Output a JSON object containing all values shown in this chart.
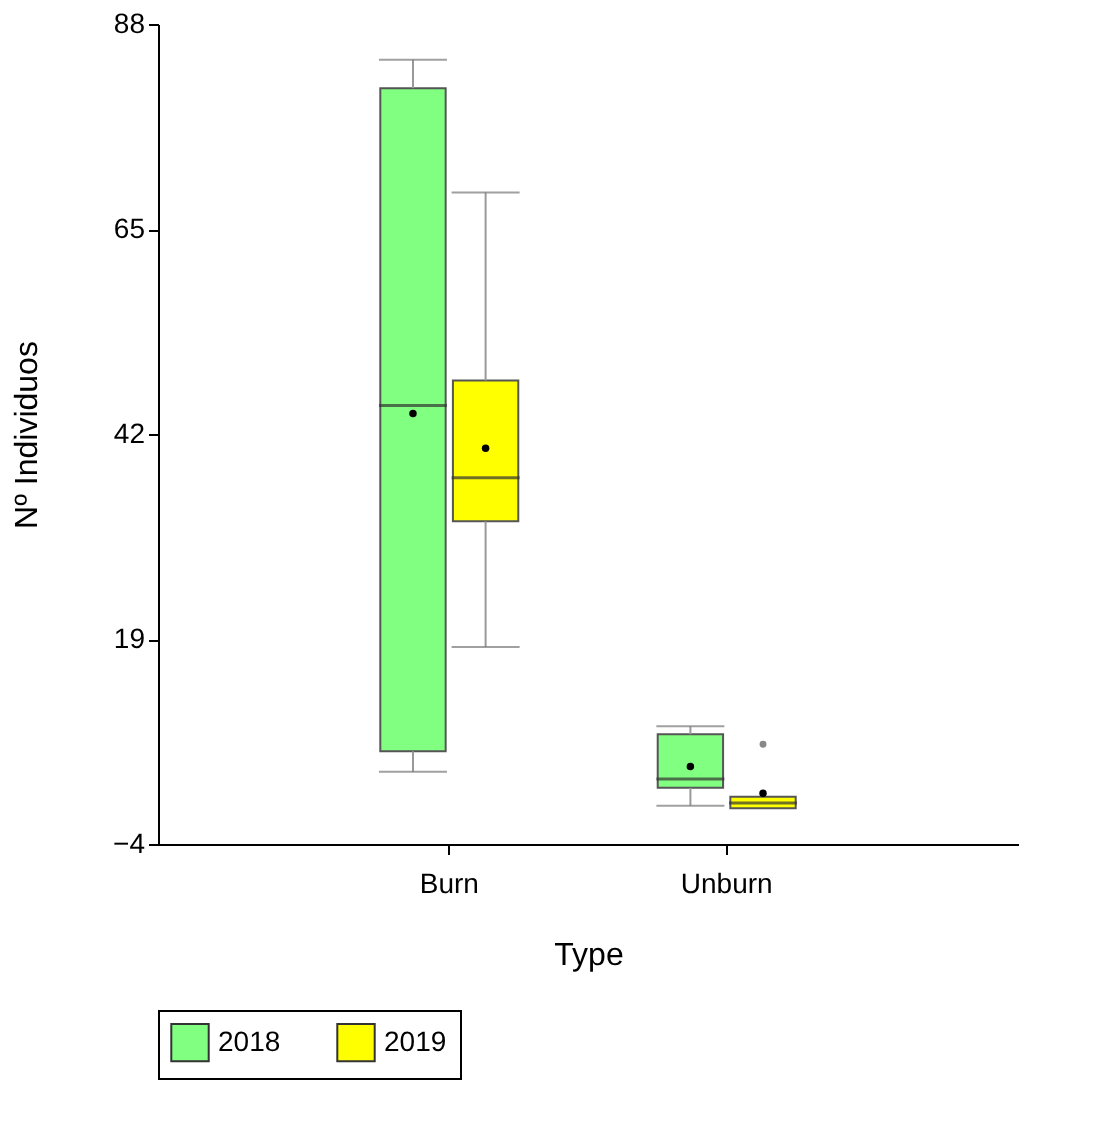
{
  "chart_data": {
    "type": "box",
    "xlabel": "Type",
    "ylabel": "Nº Individuos",
    "categories": [
      "Burn",
      "Unburn"
    ],
    "series": [
      {
        "name": "2018",
        "color": "#80ff80",
        "boxes": [
          {
            "low": 4.1,
            "q1": 6.4,
            "median": 45.2,
            "q3": 80.8,
            "high": 84.0,
            "mean": 44.3
          },
          {
            "low": 0.3,
            "q1": 2.3,
            "median": 3.3,
            "q3": 8.3,
            "high": 9.2,
            "mean": 4.7
          }
        ]
      },
      {
        "name": "2019",
        "color": "#ffff00",
        "boxes": [
          {
            "low": 18.1,
            "q1": 32.2,
            "median": 37.1,
            "q3": 48.0,
            "high": 69.1,
            "mean": 40.4
          },
          {
            "low": 0.0,
            "q1": 0.0,
            "median": 0.6,
            "q3": 1.3,
            "high": 1.3,
            "mean": 1.7,
            "outliers": [
              7.2
            ]
          }
        ]
      }
    ],
    "ylim": [
      -4,
      88
    ],
    "yticks": [
      -4,
      19,
      42,
      65,
      88
    ],
    "grid": false,
    "legend": "bottom",
    "marker": "circle"
  }
}
